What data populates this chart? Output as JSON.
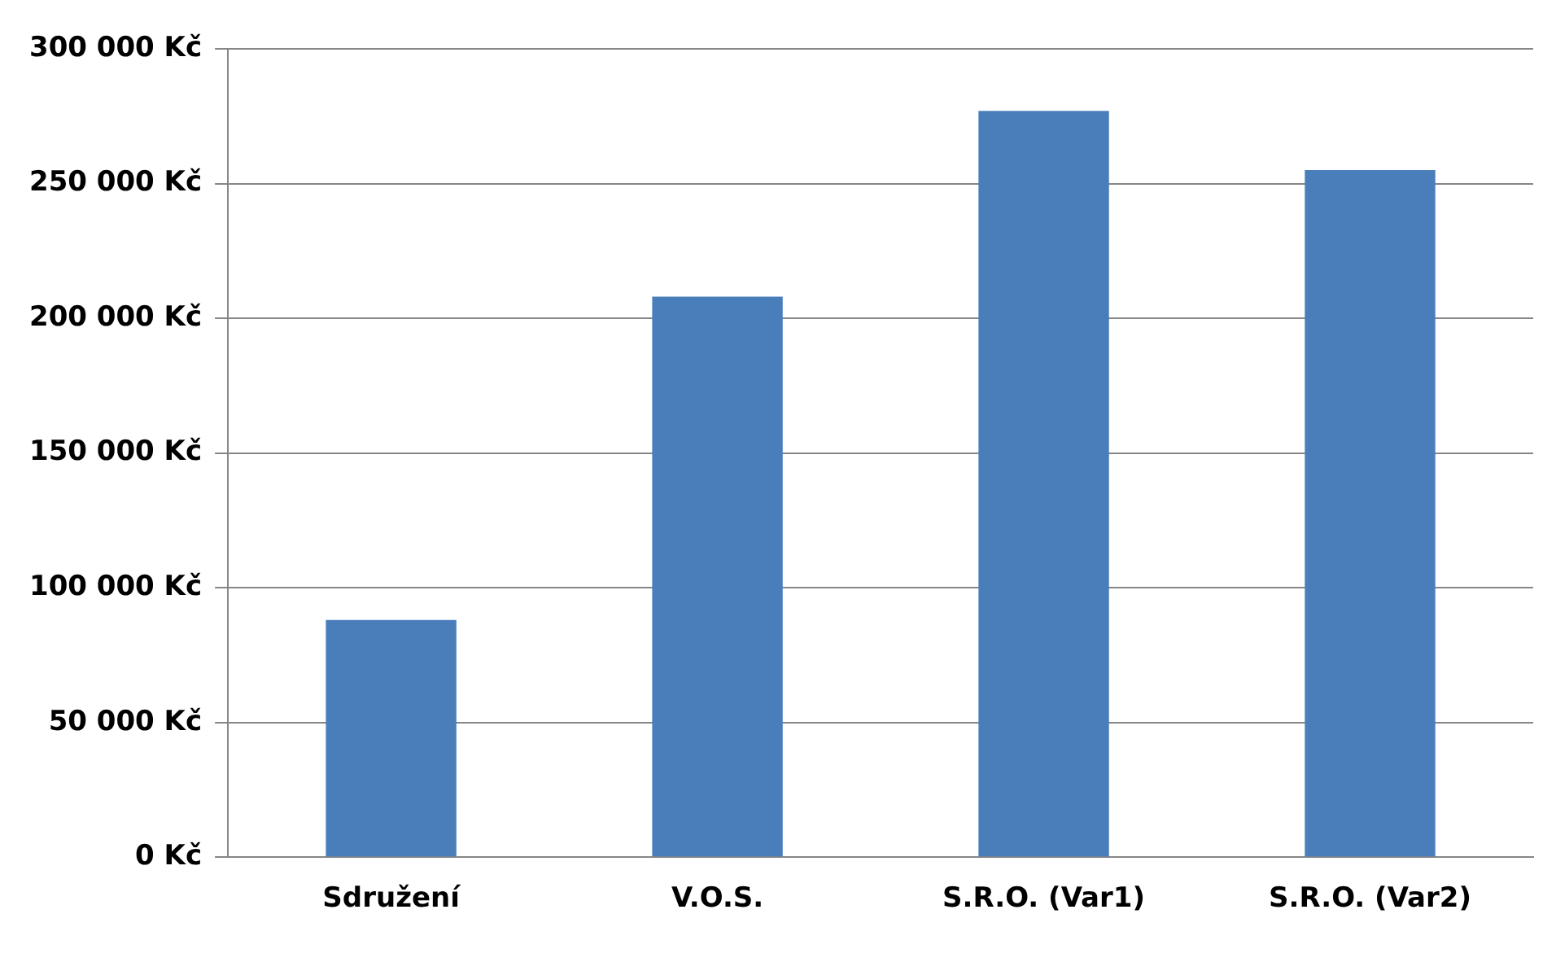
{
  "chart_data": {
    "type": "bar",
    "categories": [
      "Sdružení",
      "V.O.S.",
      "S.R.O. (Var1)",
      "S.R.O. (Var2)"
    ],
    "values": [
      88000,
      208000,
      277000,
      255000
    ],
    "color": "#4a7ebb",
    "ylim": [
      0,
      300000
    ],
    "yticks": [
      {
        "value": 0,
        "label": "0 Kč"
      },
      {
        "value": 50000,
        "label": "50 000 Kč"
      },
      {
        "value": 100000,
        "label": "100 000 Kč"
      },
      {
        "value": 150000,
        "label": "150 000 Kč"
      },
      {
        "value": 200000,
        "label": "200 000 Kč"
      },
      {
        "value": 250000,
        "label": "250 000 Kč"
      },
      {
        "value": 300000,
        "label": "300 000 Kč"
      }
    ],
    "grid": "y"
  }
}
